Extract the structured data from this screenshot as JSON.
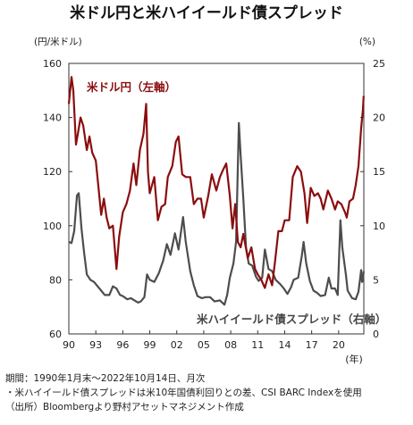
{
  "chart_data": {
    "type": "line",
    "title": "米ドル円と米ハイイールド債スプレッド",
    "left_unit": "(円/米ドル)",
    "right_unit": "(%)",
    "x_unit": "(年)",
    "x_ticks": [
      "90",
      "93",
      "96",
      "99",
      "02",
      "05",
      "08",
      "11",
      "14",
      "17",
      "20"
    ],
    "x_tick_years": [
      1990,
      1993,
      1996,
      1999,
      2002,
      2005,
      2008,
      2011,
      2014,
      2017,
      2020
    ],
    "x_range": [
      1990.0,
      2022.8
    ],
    "y_left": {
      "ticks": [
        "60",
        "80",
        "100",
        "120",
        "140",
        "160"
      ],
      "range": [
        60,
        160
      ]
    },
    "y_right": {
      "ticks": [
        "0",
        "5",
        "10",
        "15",
        "20",
        "25"
      ],
      "range": [
        0,
        25
      ]
    },
    "series": [
      {
        "name": "米ドル円（左軸）",
        "axis": "left",
        "color": "#8b0d0d",
        "points": [
          [
            1990.0,
            145
          ],
          [
            1990.3,
            155
          ],
          [
            1990.5,
            150
          ],
          [
            1990.8,
            130
          ],
          [
            1991.0,
            134
          ],
          [
            1991.3,
            140
          ],
          [
            1991.6,
            137
          ],
          [
            1992.0,
            128
          ],
          [
            1992.3,
            133
          ],
          [
            1992.6,
            127
          ],
          [
            1993.0,
            124
          ],
          [
            1993.3,
            114
          ],
          [
            1993.6,
            104
          ],
          [
            1993.9,
            110
          ],
          [
            1994.2,
            103
          ],
          [
            1994.5,
            99
          ],
          [
            1994.9,
            100
          ],
          [
            1995.3,
            84
          ],
          [
            1995.6,
            96
          ],
          [
            1996.0,
            105
          ],
          [
            1996.4,
            108
          ],
          [
            1996.8,
            113
          ],
          [
            1997.2,
            123
          ],
          [
            1997.5,
            115
          ],
          [
            1997.9,
            128
          ],
          [
            1998.3,
            134
          ],
          [
            1998.6,
            145
          ],
          [
            1998.8,
            120
          ],
          [
            1999.0,
            112
          ],
          [
            1999.5,
            118
          ],
          [
            1999.9,
            102
          ],
          [
            2000.3,
            107
          ],
          [
            2000.7,
            108
          ],
          [
            2001.0,
            118
          ],
          [
            2001.5,
            122
          ],
          [
            2001.9,
            131
          ],
          [
            2002.2,
            133
          ],
          [
            2002.6,
            119
          ],
          [
            2003.0,
            118
          ],
          [
            2003.5,
            118
          ],
          [
            2003.9,
            108
          ],
          [
            2004.3,
            110
          ],
          [
            2004.7,
            110
          ],
          [
            2005.0,
            103
          ],
          [
            2005.5,
            111
          ],
          [
            2005.9,
            119
          ],
          [
            2006.4,
            113
          ],
          [
            2006.8,
            118
          ],
          [
            2007.2,
            121
          ],
          [
            2007.5,
            123
          ],
          [
            2007.9,
            111
          ],
          [
            2008.2,
            99
          ],
          [
            2008.5,
            108
          ],
          [
            2008.8,
            94
          ],
          [
            2009.1,
            92
          ],
          [
            2009.4,
            97
          ],
          [
            2009.9,
            88
          ],
          [
            2010.3,
            92
          ],
          [
            2010.7,
            84
          ],
          [
            2011.0,
            82
          ],
          [
            2011.4,
            80
          ],
          [
            2011.8,
            77
          ],
          [
            2012.2,
            82
          ],
          [
            2012.6,
            78
          ],
          [
            2012.9,
            86
          ],
          [
            2013.3,
            98
          ],
          [
            2013.7,
            98
          ],
          [
            2014.0,
            102
          ],
          [
            2014.5,
            102
          ],
          [
            2014.9,
            118
          ],
          [
            2015.4,
            122
          ],
          [
            2015.8,
            120
          ],
          [
            2016.2,
            112
          ],
          [
            2016.5,
            101
          ],
          [
            2016.9,
            114
          ],
          [
            2017.3,
            111
          ],
          [
            2017.7,
            112
          ],
          [
            2018.0,
            110
          ],
          [
            2018.3,
            106
          ],
          [
            2018.8,
            113
          ],
          [
            2019.2,
            110
          ],
          [
            2019.6,
            106
          ],
          [
            2019.9,
            109
          ],
          [
            2020.3,
            108
          ],
          [
            2020.7,
            105
          ],
          [
            2020.9,
            103
          ],
          [
            2021.2,
            109
          ],
          [
            2021.6,
            110
          ],
          [
            2021.9,
            115
          ],
          [
            2022.2,
            122
          ],
          [
            2022.5,
            136
          ],
          [
            2022.7,
            143
          ],
          [
            2022.78,
            148
          ]
        ]
      },
      {
        "name": "米ハイイールド債スプレッド（右軸）",
        "axis": "right",
        "color": "#4d4d4d",
        "points": [
          [
            1990.0,
            8.5
          ],
          [
            1990.3,
            8.4
          ],
          [
            1990.6,
            9.5
          ],
          [
            1990.9,
            12.8
          ],
          [
            1991.1,
            13.0
          ],
          [
            1991.4,
            9.8
          ],
          [
            1991.7,
            7.5
          ],
          [
            1992.0,
            5.5
          ],
          [
            1992.4,
            5.0
          ],
          [
            1992.8,
            4.8
          ],
          [
            1993.2,
            4.4
          ],
          [
            1993.6,
            4.0
          ],
          [
            1994.0,
            3.6
          ],
          [
            1994.5,
            3.6
          ],
          [
            1994.9,
            4.4
          ],
          [
            1995.3,
            4.2
          ],
          [
            1995.7,
            3.6
          ],
          [
            1996.0,
            3.5
          ],
          [
            1996.5,
            3.2
          ],
          [
            1996.9,
            3.3
          ],
          [
            1997.3,
            3.1
          ],
          [
            1997.7,
            2.9
          ],
          [
            1998.0,
            3.0
          ],
          [
            1998.4,
            3.4
          ],
          [
            1998.7,
            5.5
          ],
          [
            1999.0,
            5.0
          ],
          [
            1999.5,
            4.8
          ],
          [
            2000.0,
            5.6
          ],
          [
            2000.5,
            6.8
          ],
          [
            2000.9,
            8.3
          ],
          [
            2001.3,
            7.3
          ],
          [
            2001.8,
            9.3
          ],
          [
            2002.2,
            7.8
          ],
          [
            2002.7,
            10.8
          ],
          [
            2003.0,
            8.5
          ],
          [
            2003.5,
            5.8
          ],
          [
            2003.9,
            4.5
          ],
          [
            2004.3,
            3.5
          ],
          [
            2004.8,
            3.3
          ],
          [
            2005.2,
            3.4
          ],
          [
            2005.7,
            3.4
          ],
          [
            2006.2,
            3.0
          ],
          [
            2006.8,
            3.1
          ],
          [
            2007.3,
            2.7
          ],
          [
            2007.6,
            3.6
          ],
          [
            2007.9,
            5.2
          ],
          [
            2008.3,
            6.5
          ],
          [
            2008.6,
            8.5
          ],
          [
            2008.9,
            19.5
          ],
          [
            2009.1,
            16.5
          ],
          [
            2009.4,
            12.5
          ],
          [
            2009.7,
            8.0
          ],
          [
            2010.0,
            6.5
          ],
          [
            2010.4,
            6.3
          ],
          [
            2010.8,
            5.3
          ],
          [
            2011.1,
            4.9
          ],
          [
            2011.5,
            5.2
          ],
          [
            2011.8,
            7.8
          ],
          [
            2012.2,
            6.0
          ],
          [
            2012.6,
            5.8
          ],
          [
            2013.0,
            5.0
          ],
          [
            2013.5,
            4.6
          ],
          [
            2013.9,
            4.2
          ],
          [
            2014.3,
            3.7
          ],
          [
            2014.7,
            4.3
          ],
          [
            2015.0,
            5.0
          ],
          [
            2015.5,
            5.2
          ],
          [
            2015.9,
            7.2
          ],
          [
            2016.1,
            8.5
          ],
          [
            2016.4,
            6.5
          ],
          [
            2016.8,
            4.9
          ],
          [
            2017.2,
            4.0
          ],
          [
            2017.6,
            3.8
          ],
          [
            2018.0,
            3.5
          ],
          [
            2018.5,
            3.6
          ],
          [
            2018.9,
            5.2
          ],
          [
            2019.2,
            4.2
          ],
          [
            2019.6,
            4.2
          ],
          [
            2019.9,
            3.6
          ],
          [
            2020.2,
            10.5
          ],
          [
            2020.4,
            8.0
          ],
          [
            2020.8,
            5.5
          ],
          [
            2021.0,
            4.0
          ],
          [
            2021.5,
            3.3
          ],
          [
            2021.9,
            3.2
          ],
          [
            2022.2,
            3.9
          ],
          [
            2022.5,
            5.9
          ],
          [
            2022.6,
            4.8
          ],
          [
            2022.7,
            5.0
          ],
          [
            2022.78,
            5.8
          ]
        ]
      }
    ],
    "series_labels": [
      "米ドル円（左軸）",
      "米ハイイールド債スプレッド（右軸）"
    ],
    "grid": false,
    "legend": "inline-labels"
  },
  "notes": {
    "period": "期間：1990年1月末～2022年10月14日、月次",
    "definition": "・米ハイイールド債スプレッドは米10年国債利回りとの差、CSI BARC Indexを使用",
    "source": "（出所）Bloombergより野村アセットマネジメント作成"
  }
}
